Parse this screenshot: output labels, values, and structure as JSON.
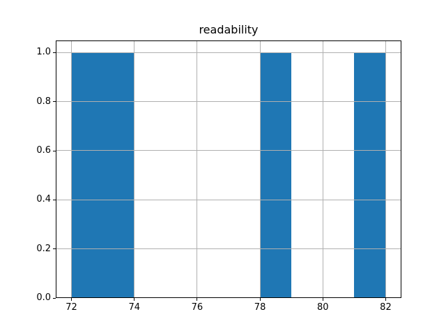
{
  "chart_data": {
    "type": "bar",
    "subtype": "histogram",
    "title": "readability",
    "xlabel": "",
    "ylabel": "",
    "bin_edges": [
      72,
      73,
      74,
      75,
      76,
      77,
      78,
      79,
      80,
      81,
      82
    ],
    "counts": [
      1,
      1,
      0,
      0,
      0,
      0,
      1,
      0,
      0,
      1
    ],
    "bars": [
      {
        "x0": 72,
        "x1": 74,
        "height": 1.0
      },
      {
        "x0": 78,
        "x1": 79,
        "height": 1.0
      },
      {
        "x0": 81,
        "x1": 82,
        "height": 1.0
      }
    ],
    "x_tick_labels": [
      "72",
      "74",
      "76",
      "78",
      "80",
      "82"
    ],
    "x_tick_values": [
      72,
      74,
      76,
      78,
      80,
      82
    ],
    "y_tick_labels": [
      "0.0",
      "0.2",
      "0.4",
      "0.6",
      "0.8",
      "1.0"
    ],
    "y_tick_values": [
      0.0,
      0.2,
      0.4,
      0.6,
      0.8,
      1.0
    ],
    "xlim": [
      71.5,
      82.5
    ],
    "ylim": [
      0,
      1.05
    ],
    "grid": true,
    "grid_above_bars": true,
    "legend": false,
    "colors": {
      "bar": "#1f77b4",
      "grid": "#b0b0b0",
      "spine": "#000000",
      "background": "#ffffff",
      "text": "#000000"
    }
  }
}
